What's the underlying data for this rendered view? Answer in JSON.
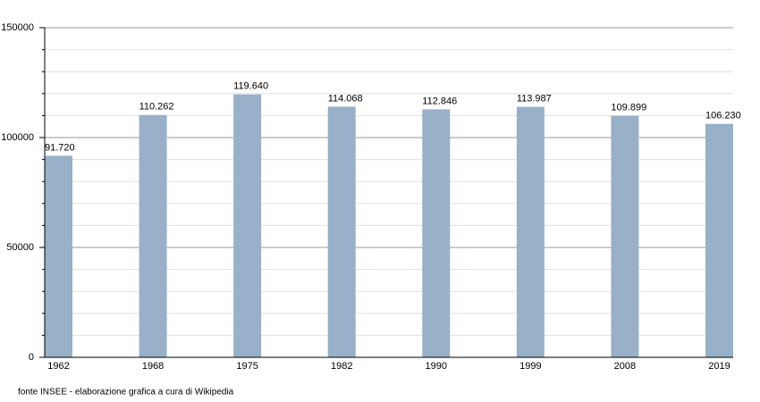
{
  "chart_data": {
    "type": "bar",
    "categories": [
      "1962",
      "1968",
      "1975",
      "1982",
      "1990",
      "1999",
      "2008",
      "2019"
    ],
    "values": [
      91720,
      110262,
      119640,
      114068,
      112846,
      113987,
      109899,
      106230
    ],
    "value_labels": [
      "91.720",
      "110.262",
      "119.640",
      "114.068",
      "112.846",
      "113.987",
      "109.899",
      "106.230"
    ],
    "color": "#98b0c8",
    "ylim": [
      0,
      150000
    ],
    "yticks": [
      0,
      50000,
      100000,
      150000
    ],
    "minor_yticks": [
      10000,
      20000,
      30000,
      40000,
      60000,
      70000,
      80000,
      90000,
      110000,
      120000,
      130000,
      140000
    ],
    "grid": true,
    "source": "fonte INSEE - elaborazione grafica a cura di Wikipedia"
  }
}
